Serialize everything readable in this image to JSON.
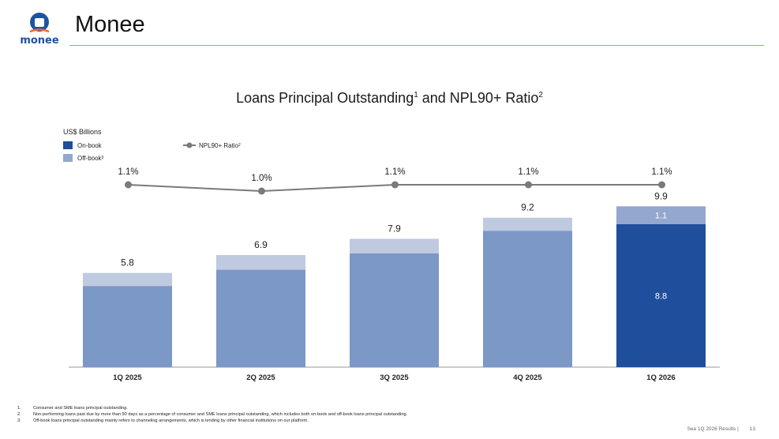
{
  "header": {
    "logo_text": "monee",
    "title": "Monee"
  },
  "chart_title": {
    "main": "Loans Principal Outstanding",
    "sup1": "1",
    "mid": " and NPL90+ Ratio",
    "sup2": "2"
  },
  "unit_label": "US$ Billions",
  "legend": {
    "on_book": "On-book",
    "off_book": "Off-book",
    "off_book_sup": "3",
    "npl": "NPL90+ Ratio",
    "npl_sup": "2"
  },
  "colors": {
    "brand": "#1f52a3",
    "on_book_highlight": "#1f4e9c",
    "on_book": "#7b98c6",
    "off_book_highlight": "#93a7cf",
    "off_book": "#bfcae0",
    "npl_line": "#7a7a7a",
    "axis": "#999999"
  },
  "chart_data": {
    "type": "bar",
    "stacked": true,
    "categories": [
      "1Q 2025",
      "2Q 2025",
      "3Q 2025",
      "4Q 2025",
      "1Q 2026"
    ],
    "series": [
      {
        "name": "On-book",
        "values": [
          5.0,
          6.0,
          7.0,
          8.4,
          8.8
        ]
      },
      {
        "name": "Off-book",
        "values": [
          0.8,
          0.9,
          0.9,
          0.8,
          1.1
        ]
      }
    ],
    "totals": [
      5.8,
      6.9,
      7.9,
      9.2,
      9.9
    ],
    "total_labels": [
      "5.8",
      "6.9",
      "7.9",
      "9.2",
      "9.9"
    ],
    "segment_labels": {
      "index": 4,
      "on_book": "8.8",
      "off_book": "1.1"
    },
    "line_series": {
      "name": "NPL90+ Ratio",
      "values": [
        1.1,
        1.0,
        1.1,
        1.1,
        1.1
      ],
      "labels": [
        "1.1%",
        "1.0%",
        "1.1%",
        "1.1%",
        "1.1%"
      ]
    },
    "highlight_index": 4,
    "ylabel": "US$ Billions",
    "ylim": [
      0,
      10.5
    ]
  },
  "footnotes": [
    {
      "n": "1.",
      "text": "Consumer and SME loans principal outstanding."
    },
    {
      "n": "2.",
      "text": "Non-performing loans past due by more than 90 days as a percentage of consumer and SME loans principal outstanding, which includes both on-book and off-book loans principal outstanding."
    },
    {
      "n": "3.",
      "text": "Off-book loans principal outstanding mainly refers to channeling arrangements, which is lending by other financial institutions on our platform."
    }
  ],
  "footer": {
    "text": "Sea 1Q 2026 Results |",
    "page": "13"
  }
}
